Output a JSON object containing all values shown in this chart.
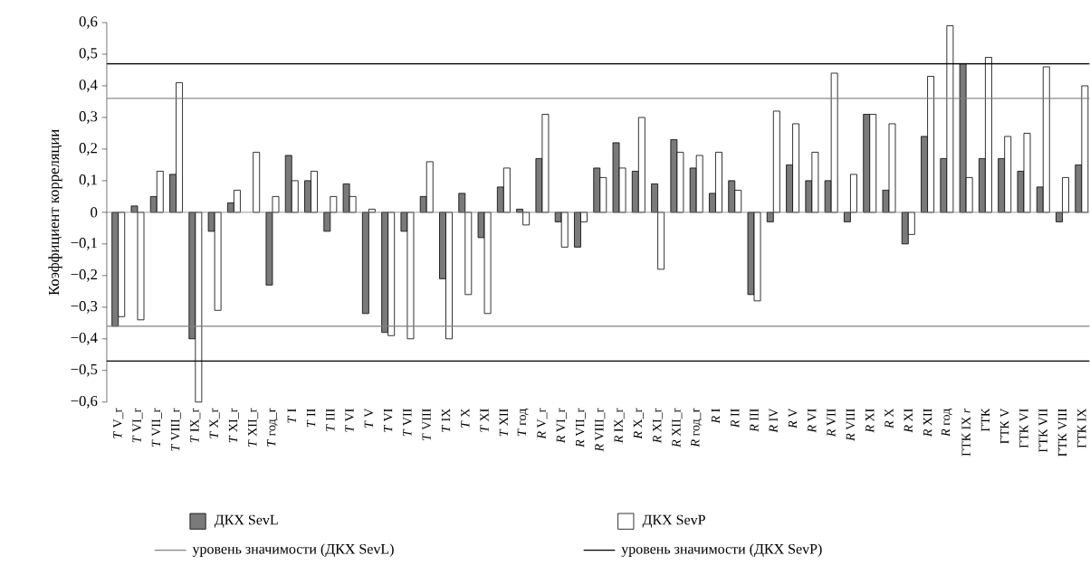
{
  "chart_data": {
    "type": "bar",
    "ylabel": "Коэффициент корреляции",
    "categories": [
      "*T* V_r",
      "*T* VI_r",
      "*T* VII_r",
      "*T* VIII_r",
      "*T* IX_r",
      "*T* X_r",
      "*T* XI_r",
      "*T* XII_r",
      "*T* год_r",
      "*T* I",
      "*T* II",
      "*T* III",
      "*T* VI",
      "*T* V",
      "*T* VI",
      "*T* VII",
      "*T* VIII",
      "*T* IX",
      "*T* X",
      "*T* XI",
      "*T* XII",
      "*T* год",
      "*R* V_r",
      "*R* VI_r",
      "*R* VII_r",
      "*R* VIII_r",
      "*R* IX_r",
      "*R* X_r",
      "*R* XI_r",
      "*R* XII_r",
      "*R* год_r",
      "*R* I",
      "*R* II",
      "*R* III",
      "*R* IV",
      "*R* V",
      "*R* VI",
      "*R* VII",
      "*R* VIII",
      "*R* XI",
      "*R* X",
      "*R* XI",
      "*R* XII",
      "*R* год",
      "ГТК IX *r*",
      "ГТК",
      "ГТК V",
      "ГТК VI",
      "ГТК VII",
      "ГТК VIII",
      "ГТК IX"
    ],
    "series": [
      {
        "name": "ДКХ SevL",
        "color": "#7a7a7a",
        "values": [
          -0.36,
          0.02,
          0.05,
          0.12,
          -0.4,
          -0.06,
          0.03,
          null,
          -0.23,
          0.18,
          0.1,
          -0.06,
          0.09,
          -0.32,
          -0.38,
          -0.06,
          0.05,
          -0.21,
          0.06,
          -0.08,
          0.08,
          0.01,
          0.17,
          -0.03,
          -0.11,
          0.14,
          0.22,
          0.13,
          0.09,
          0.23,
          0.14,
          0.06,
          0.1,
          -0.26,
          -0.03,
          0.15,
          0.1,
          0.1,
          -0.03,
          0.31,
          0.07,
          -0.1,
          0.24,
          0.17,
          0.47,
          0.17,
          0.17,
          0.13,
          0.08,
          -0.03,
          0.15
        ]
      },
      {
        "name": "ДКХ SevP",
        "color": "#ffffff",
        "values": [
          -0.33,
          -0.34,
          0.13,
          0.41,
          -0.6,
          -0.31,
          0.07,
          0.19,
          0.05,
          0.1,
          0.13,
          0.05,
          0.05,
          0.01,
          -0.39,
          -0.4,
          0.16,
          -0.4,
          -0.26,
          -0.32,
          0.14,
          -0.04,
          0.31,
          -0.11,
          -0.03,
          0.11,
          0.14,
          0.3,
          -0.18,
          0.19,
          0.18,
          0.19,
          0.07,
          -0.28,
          0.32,
          0.28,
          0.19,
          0.44,
          0.12,
          0.31,
          0.28,
          -0.07,
          0.43,
          0.59,
          0.11,
          0.49,
          0.24,
          0.25,
          0.46,
          0.11,
          0.4
        ]
      }
    ],
    "ylim": [
      -0.6,
      0.6
    ],
    "yticks": [
      {
        "value": -0.6,
        "label": "−0,6"
      },
      {
        "value": -0.5,
        "label": "−0,5"
      },
      {
        "value": -0.4,
        "label": "−0,4"
      },
      {
        "value": -0.3,
        "label": "−0,3"
      },
      {
        "value": -0.2,
        "label": "−0,2"
      },
      {
        "value": -0.1,
        "label": "−0,1"
      },
      0,
      {
        "value": 0.1,
        "label": "0,1"
      },
      {
        "value": 0.2,
        "label": "0,2"
      },
      {
        "value": 0.3,
        "label": "0,3"
      },
      {
        "value": 0.4,
        "label": "0,4"
      },
      {
        "value": 0.5,
        "label": "0,5"
      },
      {
        "value": 0.6,
        "label": "0,6"
      }
    ],
    "ref_lines": [
      {
        "axis": "y",
        "value": 0.36,
        "label": "уровень значимости (ДКХ SevL)",
        "color": "#808080"
      },
      {
        "axis": "y",
        "value": -0.36,
        "color": "#808080"
      },
      {
        "axis": "y",
        "value": 0.47,
        "label": "уровень значимости (ДКХ SevP)",
        "color": "#000000"
      },
      {
        "axis": "y",
        "value": -0.47,
        "color": "#000000"
      }
    ],
    "legend": "bottom"
  }
}
